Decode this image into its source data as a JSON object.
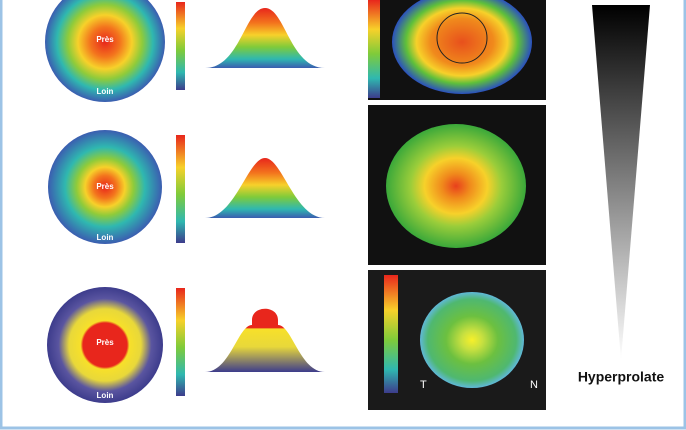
{
  "rows": [
    {
      "center_label": "Près",
      "edge_label": "Loin"
    },
    {
      "center_label": "Près",
      "edge_label": "Loin"
    },
    {
      "center_label": "Près",
      "edge_label": "Loin"
    }
  ],
  "triangle_label": "Hyperprolate",
  "topography_labels": [
    "T",
    "N"
  ]
}
